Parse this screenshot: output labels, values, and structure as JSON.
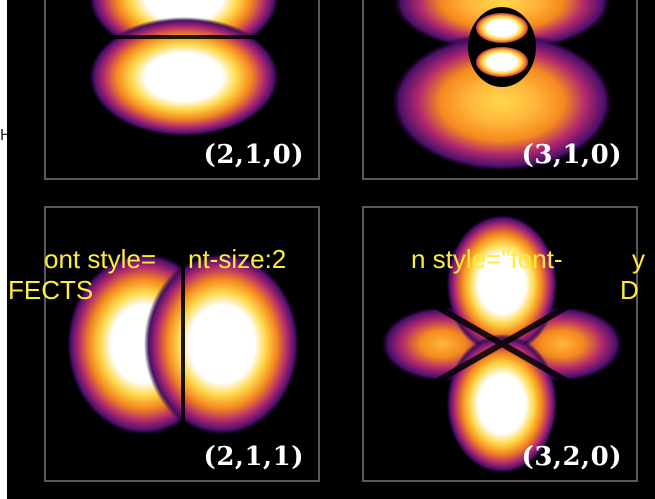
{
  "panels": [
    {
      "label": "(2,1,0)"
    },
    {
      "label": "(3,1,0)"
    },
    {
      "label": "(2,1,1)"
    },
    {
      "label": "(3,2,0)"
    }
  ],
  "edge_glyph": "H",
  "overlay": {
    "line1_a": "ont style=",
    "line1_b": "nt-size:2",
    "line1_c": "n style=\"font-",
    "line1_d": "y",
    "line2_a": "FECTS",
    "line2_b": "D"
  },
  "colors": {
    "glow_core": "#ffffff",
    "glow_yellow": "#ffd84a",
    "glow_orange": "#f58a1f",
    "glow_magenta": "#b0286e",
    "glow_purple": "#4a0f6b",
    "background": "#000000",
    "frame": "#5a5a5a",
    "overlay_text": "#ffeb3b"
  }
}
